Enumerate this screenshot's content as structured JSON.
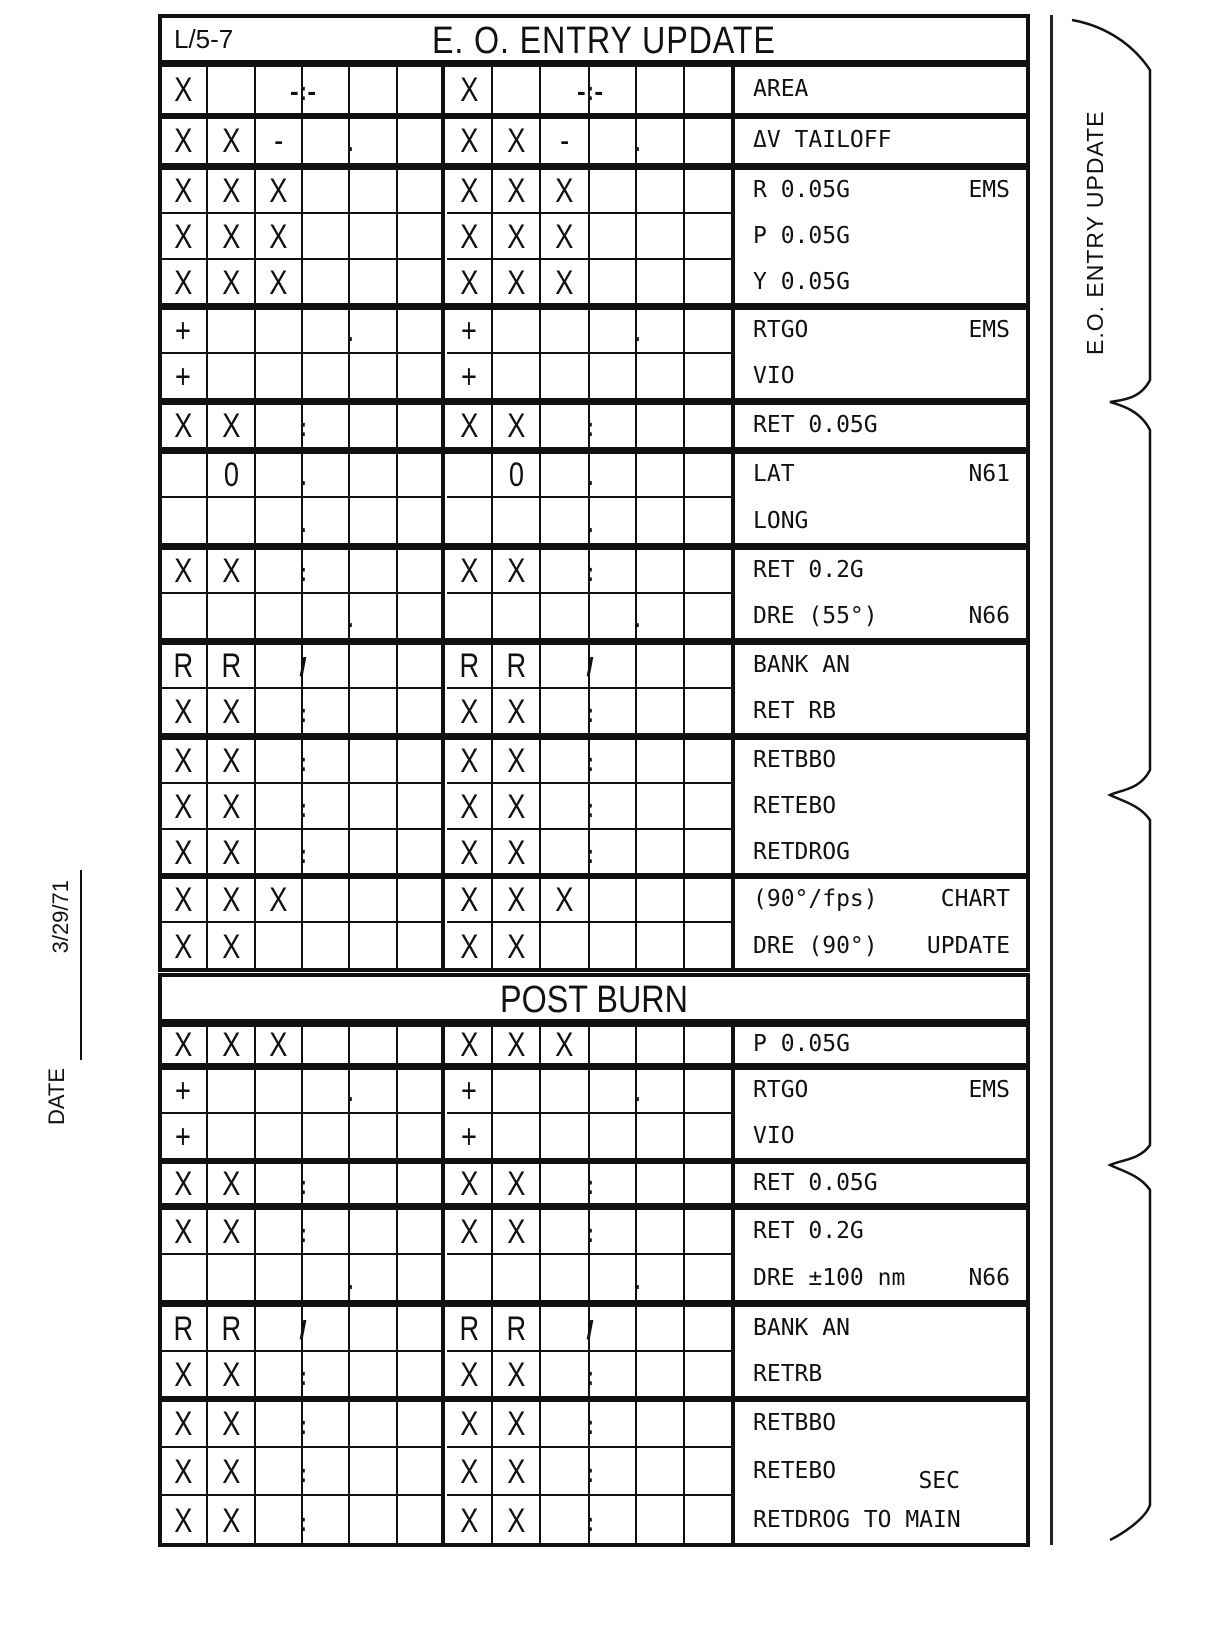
{
  "form": {
    "code": "L/5-7",
    "title": "E. O. ENTRY UPDATE",
    "section_divider": "POST BURN",
    "side_tab": "E.O. ENTRY UPDATE",
    "date_label": "DATE",
    "date_value": "3/29/71"
  },
  "groups": [
    {
      "rows": [
        {
          "left": [
            "X",
            "",
            "",
            "",
            "",
            ""
          ],
          "right": [
            "X",
            "",
            "",
            "",
            "",
            ""
          ],
          "label": "AREA",
          "tag": "",
          "marker": "-:-",
          "marker_col": 3
        }
      ]
    },
    {
      "rows": [
        {
          "left": [
            "X",
            "X",
            "-",
            "",
            "",
            ""
          ],
          "right": [
            "X",
            "X",
            "-",
            "",
            "",
            ""
          ],
          "label": "ΔV TAILOFF",
          "tag": "",
          "marker": ".",
          "marker_col": 4
        }
      ]
    },
    {
      "rows": [
        {
          "left": [
            "X",
            "X",
            "X",
            "",
            "",
            ""
          ],
          "right": [
            "X",
            "X",
            "X",
            "",
            "",
            ""
          ],
          "label": "R 0.05G",
          "tag": "EMS",
          "marker": "",
          "marker_col": 0
        },
        {
          "left": [
            "X",
            "X",
            "X",
            "",
            "",
            ""
          ],
          "right": [
            "X",
            "X",
            "X",
            "",
            "",
            ""
          ],
          "label": "P 0.05G",
          "tag": "",
          "marker": "",
          "marker_col": 0
        },
        {
          "left": [
            "X",
            "X",
            "X",
            "",
            "",
            ""
          ],
          "right": [
            "X",
            "X",
            "X",
            "",
            "",
            ""
          ],
          "label": "Y 0.05G",
          "tag": "",
          "marker": "",
          "marker_col": 0
        }
      ]
    },
    {
      "rows": [
        {
          "left": [
            "+",
            "",
            "",
            "",
            "",
            ""
          ],
          "right": [
            "+",
            "",
            "",
            "",
            "",
            ""
          ],
          "label": "RTGO",
          "tag": "EMS",
          "marker": ".",
          "marker_col": 4
        },
        {
          "left": [
            "+",
            "",
            "",
            "",
            "",
            ""
          ],
          "right": [
            "+",
            "",
            "",
            "",
            "",
            ""
          ],
          "label": "VIO",
          "tag": "",
          "marker": "",
          "marker_col": 0
        }
      ]
    },
    {
      "rows": [
        {
          "left": [
            "X",
            "X",
            "",
            "",
            "",
            ""
          ],
          "right": [
            "X",
            "X",
            "",
            "",
            "",
            ""
          ],
          "label": "RET 0.05G",
          "tag": "",
          "marker": ":",
          "marker_col": 3
        }
      ]
    },
    {
      "rows": [
        {
          "left": [
            "",
            "0",
            "",
            "",
            "",
            ""
          ],
          "right": [
            "",
            "0",
            "",
            "",
            "",
            ""
          ],
          "label": "LAT",
          "tag": "N61",
          "marker": ".",
          "marker_col": 3
        },
        {
          "left": [
            "",
            "",
            "",
            "",
            "",
            ""
          ],
          "right": [
            "",
            "",
            "",
            "",
            "",
            ""
          ],
          "label": "LONG",
          "tag": "",
          "marker": ".",
          "marker_col": 3
        }
      ]
    },
    {
      "rows": [
        {
          "left": [
            "X",
            "X",
            "",
            "",
            "",
            ""
          ],
          "right": [
            "X",
            "X",
            "",
            "",
            "",
            ""
          ],
          "label": "RET 0.2G",
          "tag": "",
          "marker": ":",
          "marker_col": 3
        },
        {
          "left": [
            "",
            "",
            "",
            "",
            "",
            ""
          ],
          "right": [
            "",
            "",
            "",
            "",
            "",
            ""
          ],
          "label": "DRE  (55°)",
          "tag": "N66",
          "marker": ".",
          "marker_col": 4
        }
      ]
    },
    {
      "rows": [
        {
          "left": [
            "R",
            "R",
            "",
            "",
            "",
            ""
          ],
          "right": [
            "R",
            "R",
            "",
            "",
            "",
            ""
          ],
          "label": "BANK AN",
          "tag": "",
          "marker": "/",
          "marker_col": 3
        },
        {
          "left": [
            "X",
            "X",
            "",
            "",
            "",
            ""
          ],
          "right": [
            "X",
            "X",
            "",
            "",
            "",
            ""
          ],
          "label": "RET RB",
          "tag": "",
          "marker": ":",
          "marker_col": 3
        }
      ]
    },
    {
      "rows": [
        {
          "left": [
            "X",
            "X",
            "",
            "",
            "",
            ""
          ],
          "right": [
            "X",
            "X",
            "",
            "",
            "",
            ""
          ],
          "label": "RETBBO",
          "tag": "",
          "marker": ":",
          "marker_col": 3
        },
        {
          "left": [
            "X",
            "X",
            "",
            "",
            "",
            ""
          ],
          "right": [
            "X",
            "X",
            "",
            "",
            "",
            ""
          ],
          "label": "RETEBO",
          "tag": "",
          "marker": ":",
          "marker_col": 3
        },
        {
          "left": [
            "X",
            "X",
            "",
            "",
            "",
            ""
          ],
          "right": [
            "X",
            "X",
            "",
            "",
            "",
            ""
          ],
          "label": "RETDROG",
          "tag": "",
          "marker": ":",
          "marker_col": 3
        }
      ]
    },
    {
      "rows": [
        {
          "left": [
            "X",
            "X",
            "X",
            "",
            "",
            ""
          ],
          "right": [
            "X",
            "X",
            "X",
            "",
            "",
            ""
          ],
          "label": "(90°/fps)",
          "tag": "CHART",
          "marker": "",
          "marker_col": 0
        },
        {
          "left": [
            "X",
            "X",
            "",
            "",
            "",
            ""
          ],
          "right": [
            "X",
            "X",
            "",
            "",
            "",
            ""
          ],
          "label": "DRE (90°)",
          "tag": "UPDATE",
          "marker": "",
          "marker_col": 0
        }
      ]
    },
    {
      "rows": [
        {
          "left": [
            "X",
            "X",
            "X",
            "",
            "",
            ""
          ],
          "right": [
            "X",
            "X",
            "X",
            "",
            "",
            ""
          ],
          "label": "P 0.05G",
          "tag": "",
          "marker": "",
          "marker_col": 0
        }
      ]
    },
    {
      "rows": [
        {
          "left": [
            "+",
            "",
            "",
            "",
            "",
            ""
          ],
          "right": [
            "+",
            "",
            "",
            "",
            "",
            ""
          ],
          "label": "RTGO",
          "tag": "EMS",
          "marker": ".",
          "marker_col": 4
        },
        {
          "left": [
            "+",
            "",
            "",
            "",
            "",
            ""
          ],
          "right": [
            "+",
            "",
            "",
            "",
            "",
            ""
          ],
          "label": "VIO",
          "tag": "",
          "marker": "",
          "marker_col": 0
        }
      ]
    },
    {
      "rows": [
        {
          "left": [
            "X",
            "X",
            "",
            "",
            "",
            ""
          ],
          "right": [
            "X",
            "X",
            "",
            "",
            "",
            ""
          ],
          "label": "RET 0.05G",
          "tag": "",
          "marker": ":",
          "marker_col": 3
        }
      ]
    },
    {
      "rows": [
        {
          "left": [
            "X",
            "X",
            "",
            "",
            "",
            ""
          ],
          "right": [
            "X",
            "X",
            "",
            "",
            "",
            ""
          ],
          "label": "RET 0.2G",
          "tag": "",
          "marker": ":",
          "marker_col": 3
        },
        {
          "left": [
            "",
            "",
            "",
            "",
            "",
            ""
          ],
          "right": [
            "",
            "",
            "",
            "",
            "",
            ""
          ],
          "label": "DRE ±100 nm",
          "tag": "N66",
          "marker": ".",
          "marker_col": 4
        }
      ]
    },
    {
      "rows": [
        {
          "left": [
            "R",
            "R",
            "",
            "",
            "",
            ""
          ],
          "right": [
            "R",
            "R",
            "",
            "",
            "",
            ""
          ],
          "label": "BANK AN",
          "tag": "",
          "marker": "/",
          "marker_col": 3
        },
        {
          "left": [
            "X",
            "X",
            "",
            "",
            "",
            ""
          ],
          "right": [
            "X",
            "X",
            "",
            "",
            "",
            ""
          ],
          "label": "RETRB",
          "tag": "",
          "marker": ":",
          "marker_col": 3
        }
      ]
    },
    {
      "rows": [
        {
          "left": [
            "X",
            "X",
            "",
            "",
            "",
            ""
          ],
          "right": [
            "X",
            "X",
            "",
            "",
            "",
            ""
          ],
          "label": "RETBBO",
          "tag": "",
          "marker": ":",
          "marker_col": 3
        },
        {
          "left": [
            "X",
            "X",
            "",
            "",
            "",
            ""
          ],
          "right": [
            "X",
            "X",
            "",
            "",
            "",
            ""
          ],
          "label": "RETEBO",
          "tag": "SEC",
          "marker": ":",
          "marker_col": 3
        },
        {
          "left": [
            "X",
            "X",
            "",
            "",
            "",
            ""
          ],
          "right": [
            "X",
            "X",
            "",
            "",
            "",
            ""
          ],
          "label": "RETDROG TO MAIN",
          "tag": "",
          "marker": ":",
          "marker_col": 3
        }
      ]
    }
  ]
}
